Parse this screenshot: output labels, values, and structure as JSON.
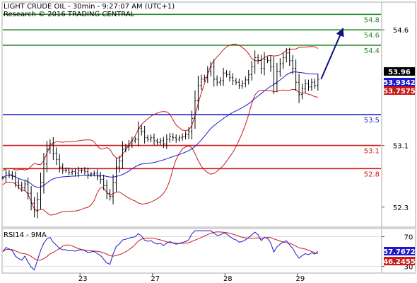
{
  "chart_data": [
    {
      "type": "line",
      "title": "LIGHT CRUDE OIL - 30min - 9:27:07 AM (UTC+1)",
      "subtitle": "Research © 2016 TRADING CENTRAL",
      "ylim": [
        52.05,
        54.95
      ],
      "yticks": [
        "54.6",
        "53.1",
        "52.3"
      ],
      "ytick_values": [
        54.6,
        53.1,
        52.3
      ],
      "xlim": [
        0,
        120
      ],
      "xticks": [
        {
          "label": "23",
          "x": 24.5
        },
        {
          "label": "27",
          "x": 47.5
        },
        {
          "label": "28",
          "x": 70.5
        },
        {
          "label": "29",
          "x": 93.5
        }
      ],
      "levels": [
        {
          "label": "54.8",
          "value": 54.8,
          "color": "#2e8b2e"
        },
        {
          "label": "54.6",
          "value": 54.6,
          "color": "#2e8b2e"
        },
        {
          "label": "54.4",
          "value": 54.4,
          "color": "#2e8b2e"
        },
        {
          "label": "53.5",
          "value": 53.5,
          "color": "#1a1acc"
        },
        {
          "label": "53.1",
          "value": 53.1,
          "color": "#cc1a1a"
        },
        {
          "label": "52.8",
          "value": 52.8,
          "color": "#cc1a1a"
        }
      ],
      "price_tags": [
        {
          "label": "53.96",
          "value": 53.96,
          "bg": "#000000",
          "fg": "#ffffff"
        },
        {
          "label": "53.9342",
          "value": 53.9342,
          "bg": "#1a1acc",
          "fg": "#ffffff"
        },
        {
          "label": "53.7575",
          "value": 53.7575,
          "bg": "#cc1a1a",
          "fg": "#ffffff"
        }
      ],
      "projection": {
        "from": [
          101,
          53.96
        ],
        "to": [
          108,
          54.62
        ],
        "color": "#101080"
      },
      "price": [
        52.68,
        52.74,
        52.72,
        52.7,
        52.62,
        52.58,
        52.55,
        52.6,
        52.48,
        52.35,
        52.25,
        52.4,
        52.62,
        52.86,
        53.05,
        53.12,
        53.0,
        52.92,
        52.82,
        52.78,
        52.78,
        52.75,
        52.76,
        52.74,
        52.77,
        52.78,
        52.76,
        52.72,
        52.73,
        52.74,
        52.7,
        52.66,
        52.58,
        52.48,
        52.44,
        52.62,
        52.82,
        52.9,
        53.05,
        53.08,
        53.12,
        53.16,
        53.18,
        53.32,
        53.28,
        53.2,
        53.18,
        53.2,
        53.16,
        53.14,
        53.16,
        53.12,
        53.18,
        53.22,
        53.2,
        53.18,
        53.2,
        53.22,
        53.24,
        53.28,
        53.45,
        53.68,
        53.88,
        53.96,
        53.98,
        54.06,
        54.12,
        53.96,
        53.92,
        53.94,
        54.04,
        54.02,
        53.98,
        53.94,
        53.92,
        53.88,
        53.9,
        53.95,
        54.02,
        54.12,
        54.24,
        54.2,
        54.1,
        54.22,
        54.2,
        54.12,
        53.9,
        54.06,
        54.16,
        54.24,
        54.3,
        54.2,
        54.1,
        53.92,
        53.76,
        53.84,
        53.9,
        53.86,
        53.92,
        53.88,
        53.96
      ],
      "series": [
        {
          "name": "",
          "color": "#000000"
        },
        {
          "name": "",
          "color": "#1a1acc"
        },
        {
          "name": "",
          "color": "#cc1a1a"
        }
      ]
    },
    {
      "type": "line",
      "title": "RSI14 - 9MA",
      "ylim": [
        22,
        80
      ],
      "yticks": [
        "70",
        "30"
      ],
      "ytick_values": [
        70,
        30
      ],
      "price_tags": [
        {
          "label": "57.7672",
          "value": 57.7672,
          "bg": "#1a1acc",
          "fg": "#ffffff"
        },
        {
          "label": "46.2455",
          "value": 46.2455,
          "bg": "#cc1a1a",
          "fg": "#ffffff"
        }
      ],
      "series": [
        {
          "name": "",
          "color": "#1a1acc"
        },
        {
          "name": "",
          "color": "#cc1a1a"
        }
      ]
    }
  ]
}
